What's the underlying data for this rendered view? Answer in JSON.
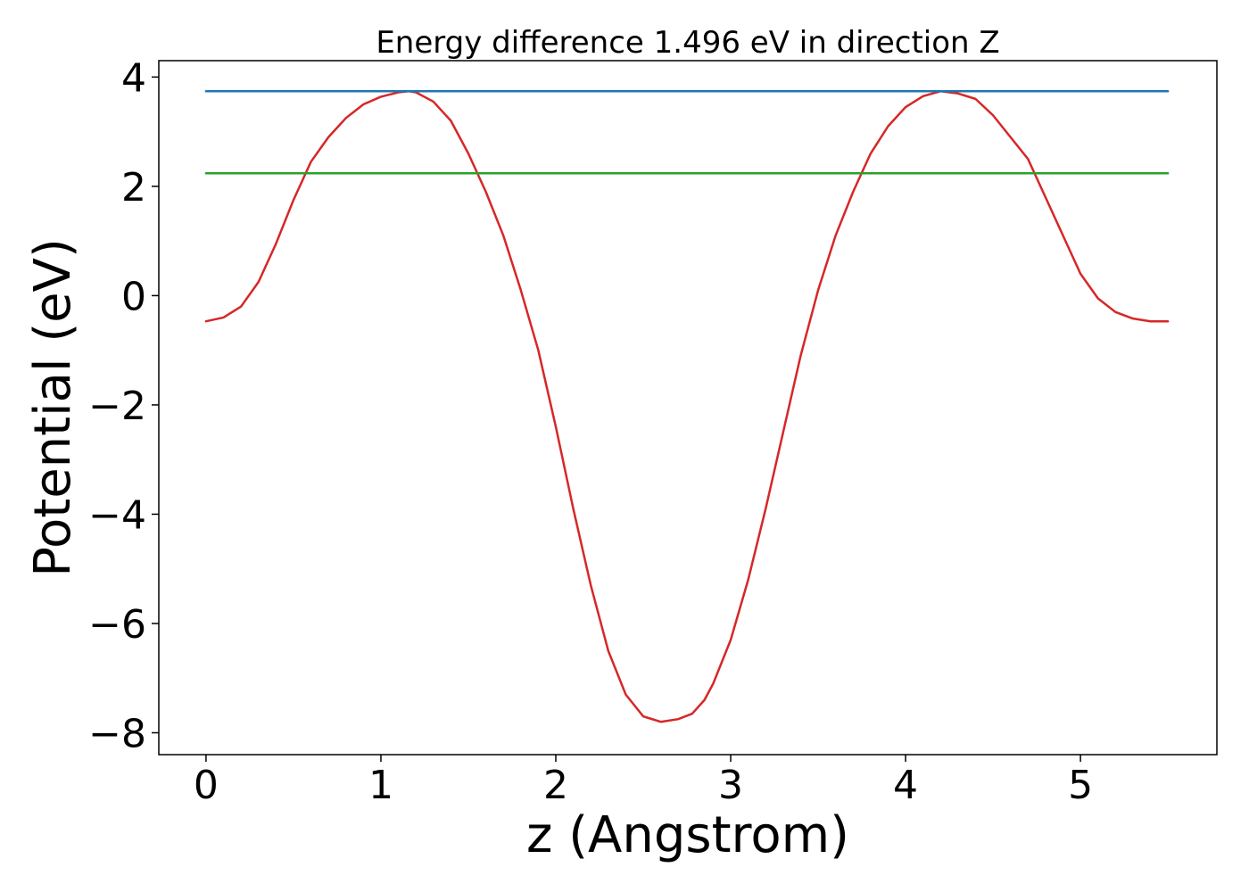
{
  "chart_data": {
    "type": "line",
    "title": "Energy difference 1.496 eV in direction Z",
    "xlabel": "z (Angstrom)",
    "ylabel": "Potential (eV)",
    "xlim": [
      -0.27,
      5.78
    ],
    "ylim": [
      -8.4,
      4.3
    ],
    "xticks": [
      0,
      1,
      2,
      3,
      4,
      5
    ],
    "xtick_labels": [
      "0",
      "1",
      "2",
      "3",
      "4",
      "5"
    ],
    "yticks": [
      4,
      2,
      0,
      -2,
      -4,
      -6,
      -8
    ],
    "ytick_labels": [
      "4",
      "2",
      "0",
      "−2",
      "−4",
      "−6",
      "−8"
    ],
    "grid": false,
    "series": [
      {
        "color": "#d62728",
        "x": [
          0.0,
          0.1,
          0.2,
          0.3,
          0.4,
          0.5,
          0.6,
          0.7,
          0.8,
          0.9,
          1.0,
          1.1,
          1.16,
          1.2,
          1.3,
          1.4,
          1.5,
          1.6,
          1.7,
          1.8,
          1.9,
          2.0,
          2.1,
          2.2,
          2.3,
          2.4,
          2.5,
          2.6,
          2.7,
          2.78,
          2.85,
          2.9,
          3.0,
          3.1,
          3.2,
          3.3,
          3.4,
          3.5,
          3.6,
          3.7,
          3.8,
          3.9,
          4.0,
          4.1,
          4.2,
          4.3,
          4.4,
          4.5,
          4.6,
          4.7,
          4.8,
          4.9,
          5.0,
          5.1,
          5.2,
          5.3,
          5.4,
          5.5
        ],
        "y": [
          -0.47,
          -0.4,
          -0.2,
          0.25,
          0.95,
          1.75,
          2.45,
          2.9,
          3.25,
          3.5,
          3.64,
          3.72,
          3.74,
          3.72,
          3.55,
          3.2,
          2.6,
          1.9,
          1.1,
          0.1,
          -1.0,
          -2.4,
          -3.9,
          -5.3,
          -6.5,
          -7.3,
          -7.7,
          -7.8,
          -7.75,
          -7.65,
          -7.4,
          -7.1,
          -6.3,
          -5.2,
          -3.9,
          -2.5,
          -1.1,
          0.1,
          1.1,
          1.9,
          2.6,
          3.1,
          3.45,
          3.65,
          3.74,
          3.7,
          3.6,
          3.3,
          2.9,
          2.5,
          1.8,
          1.1,
          0.4,
          -0.05,
          -0.3,
          -0.42,
          -0.47,
          -0.47
        ]
      },
      {
        "color": "#1f77b4",
        "x": [
          0.0,
          5.5
        ],
        "y": [
          3.74,
          3.74
        ]
      },
      {
        "color": "#2ca02c",
        "x": [
          0.0,
          5.5
        ],
        "y": [
          2.24,
          2.24
        ]
      }
    ]
  }
}
